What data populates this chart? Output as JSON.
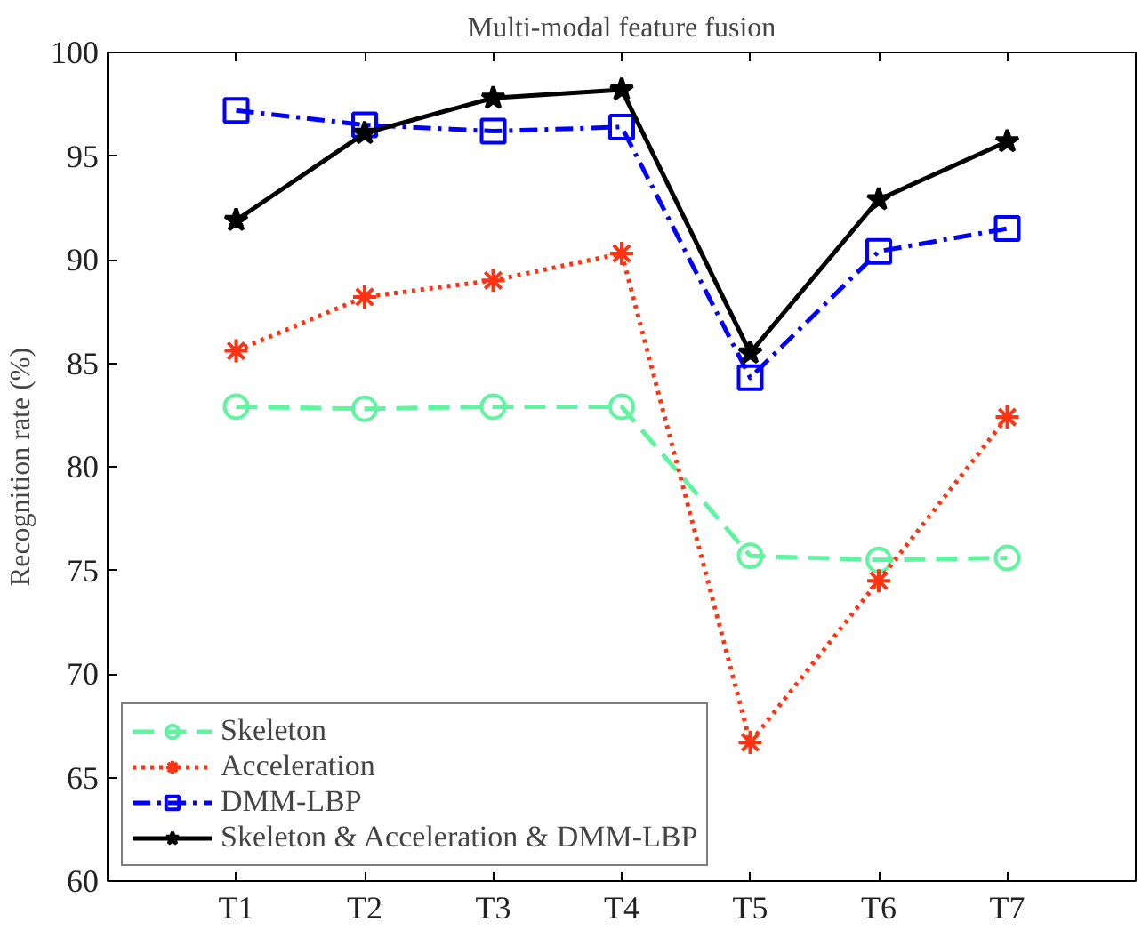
{
  "chart_data": {
    "type": "line",
    "title": "Multi-modal feature fusion",
    "ylabel": "Recognition rate (%)",
    "categories": [
      "T1",
      "T2",
      "T3",
      "T4",
      "T5",
      "T6",
      "T7"
    ],
    "ylim": [
      60,
      100
    ],
    "yticks": [
      60,
      65,
      70,
      75,
      80,
      85,
      90,
      95,
      100
    ],
    "grid": false,
    "legend": "bottom left",
    "series": [
      {
        "name": "Skeleton",
        "color": "#5ff5a0",
        "marker": "circle",
        "line_style": "dashed",
        "values": [
          82.9,
          82.8,
          82.9,
          82.9,
          75.7,
          75.5,
          75.6
        ]
      },
      {
        "name": "Acceleration",
        "color": "#ff3311",
        "marker": "cross",
        "line_style": "dotted",
        "values": [
          85.6,
          88.2,
          89.0,
          90.3,
          66.7,
          74.5,
          82.4
        ]
      },
      {
        "name": "DMM-LBP",
        "color": "#0000ff",
        "marker": "square",
        "line_style": "dashdot",
        "values": [
          97.2,
          96.5,
          96.2,
          96.4,
          84.3,
          90.4,
          91.5
        ]
      },
      {
        "name": "Skeleton & Acceleration & DMM-LBP",
        "color": "#000000",
        "marker": "star",
        "line_style": "solid",
        "values": [
          91.9,
          96.1,
          97.8,
          98.2,
          85.5,
          92.9,
          95.7
        ]
      }
    ]
  }
}
